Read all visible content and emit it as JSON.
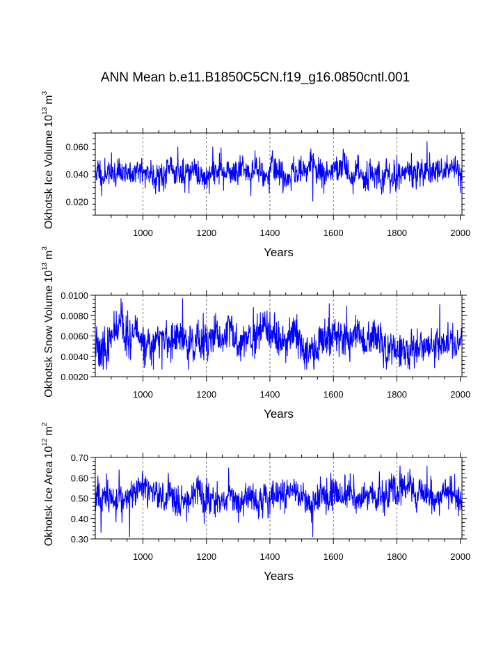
{
  "title": "ANN Mean b.e11.B1850C5CN.f19_g16.0850cntl.001",
  "chart_data": [
    {
      "type": "line",
      "name": "ice-volume",
      "ylabel": "Okhotsk Ice Volume",
      "ylabel_unit_prefix": "10",
      "ylabel_unit_exp": "13",
      "ylabel_unit_base": "m",
      "ylabel_unit_base_exp": "3",
      "xlabel": "Years",
      "xlim": [
        850,
        2005
      ],
      "ylim": [
        0.01,
        0.07
      ],
      "yticks": [
        0.02,
        0.04,
        0.06
      ],
      "yticklabels": [
        "0.020",
        "0.040",
        "0.060"
      ],
      "xticks": [
        1000,
        1200,
        1400,
        1600,
        1800,
        2000
      ],
      "xticklabels": [
        "1000",
        "1200",
        "1400",
        "1600",
        "1800",
        "2000"
      ],
      "gridlines_x": [
        1000,
        1200,
        1400,
        1600,
        1800
      ],
      "color": "#0000ff",
      "series_stats": {
        "mean": 0.041,
        "std": 0.006,
        "min": 0.02,
        "max": 0.064,
        "seed": 11
      },
      "anchors": [
        [
          858,
          0.05
        ],
        [
          870,
          0.024
        ],
        [
          876,
          0.036
        ],
        [
          1895,
          0.064
        ],
        [
          1535,
          0.02
        ],
        [
          1110,
          0.06
        ],
        [
          1220,
          0.06
        ],
        [
          1340,
          0.024
        ]
      ]
    },
    {
      "type": "line",
      "name": "snow-volume",
      "ylabel": "Okhotsk Snow Volume",
      "ylabel_unit_prefix": "10",
      "ylabel_unit_exp": "13",
      "ylabel_unit_base": "m",
      "ylabel_unit_base_exp": "3",
      "xlabel": "Years",
      "xlim": [
        850,
        2005
      ],
      "ylim": [
        0.002,
        0.01
      ],
      "yticks": [
        0.002,
        0.004,
        0.006,
        0.008,
        0.01
      ],
      "yticklabels": [
        "0.0020",
        "0.0040",
        "0.0060",
        "0.0080",
        "0.0100"
      ],
      "xticks": [
        1000,
        1200,
        1400,
        1600,
        1800,
        2000
      ],
      "xticklabels": [
        "1000",
        "1200",
        "1400",
        "1600",
        "1800",
        "2000"
      ],
      "gridlines_x": [
        1000,
        1200,
        1400,
        1600,
        1800
      ],
      "color": "#0000ff",
      "series_stats": {
        "mean": 0.0054,
        "std": 0.0011,
        "min": 0.0027,
        "max": 0.0097,
        "seed": 23
      },
      "anchors": [
        [
          1125,
          0.0097
        ],
        [
          935,
          0.0093
        ],
        [
          1935,
          0.0091
        ],
        [
          1060,
          0.0027
        ],
        [
          1855,
          0.0028
        ]
      ]
    },
    {
      "type": "line",
      "name": "ice-area",
      "ylabel": "Okhotsk Ice Area",
      "ylabel_unit_prefix": "10",
      "ylabel_unit_exp": "12",
      "ylabel_unit_base": "m",
      "ylabel_unit_base_exp": "2",
      "xlabel": "Years",
      "xlim": [
        850,
        2005
      ],
      "ylim": [
        0.3,
        0.7
      ],
      "yticks": [
        0.3,
        0.4,
        0.5,
        0.6,
        0.7
      ],
      "yticklabels": [
        "0.30",
        "0.40",
        "0.50",
        "0.60",
        "0.70"
      ],
      "xticks": [
        1000,
        1200,
        1400,
        1600,
        1800,
        2000
      ],
      "xticklabels": [
        "1000",
        "1200",
        "1400",
        "1600",
        "1800",
        "2000"
      ],
      "gridlines_x": [
        1000,
        1200,
        1400,
        1600,
        1800
      ],
      "color": "#0000ff",
      "series_stats": {
        "mean": 0.51,
        "std": 0.045,
        "min": 0.31,
        "max": 0.66,
        "seed": 37
      },
      "anchors": [
        [
          858,
          0.61
        ],
        [
          868,
          0.33
        ],
        [
          958,
          0.31
        ],
        [
          1535,
          0.31
        ],
        [
          1895,
          0.66
        ],
        [
          925,
          0.64
        ],
        [
          1270,
          0.65
        ]
      ]
    }
  ]
}
